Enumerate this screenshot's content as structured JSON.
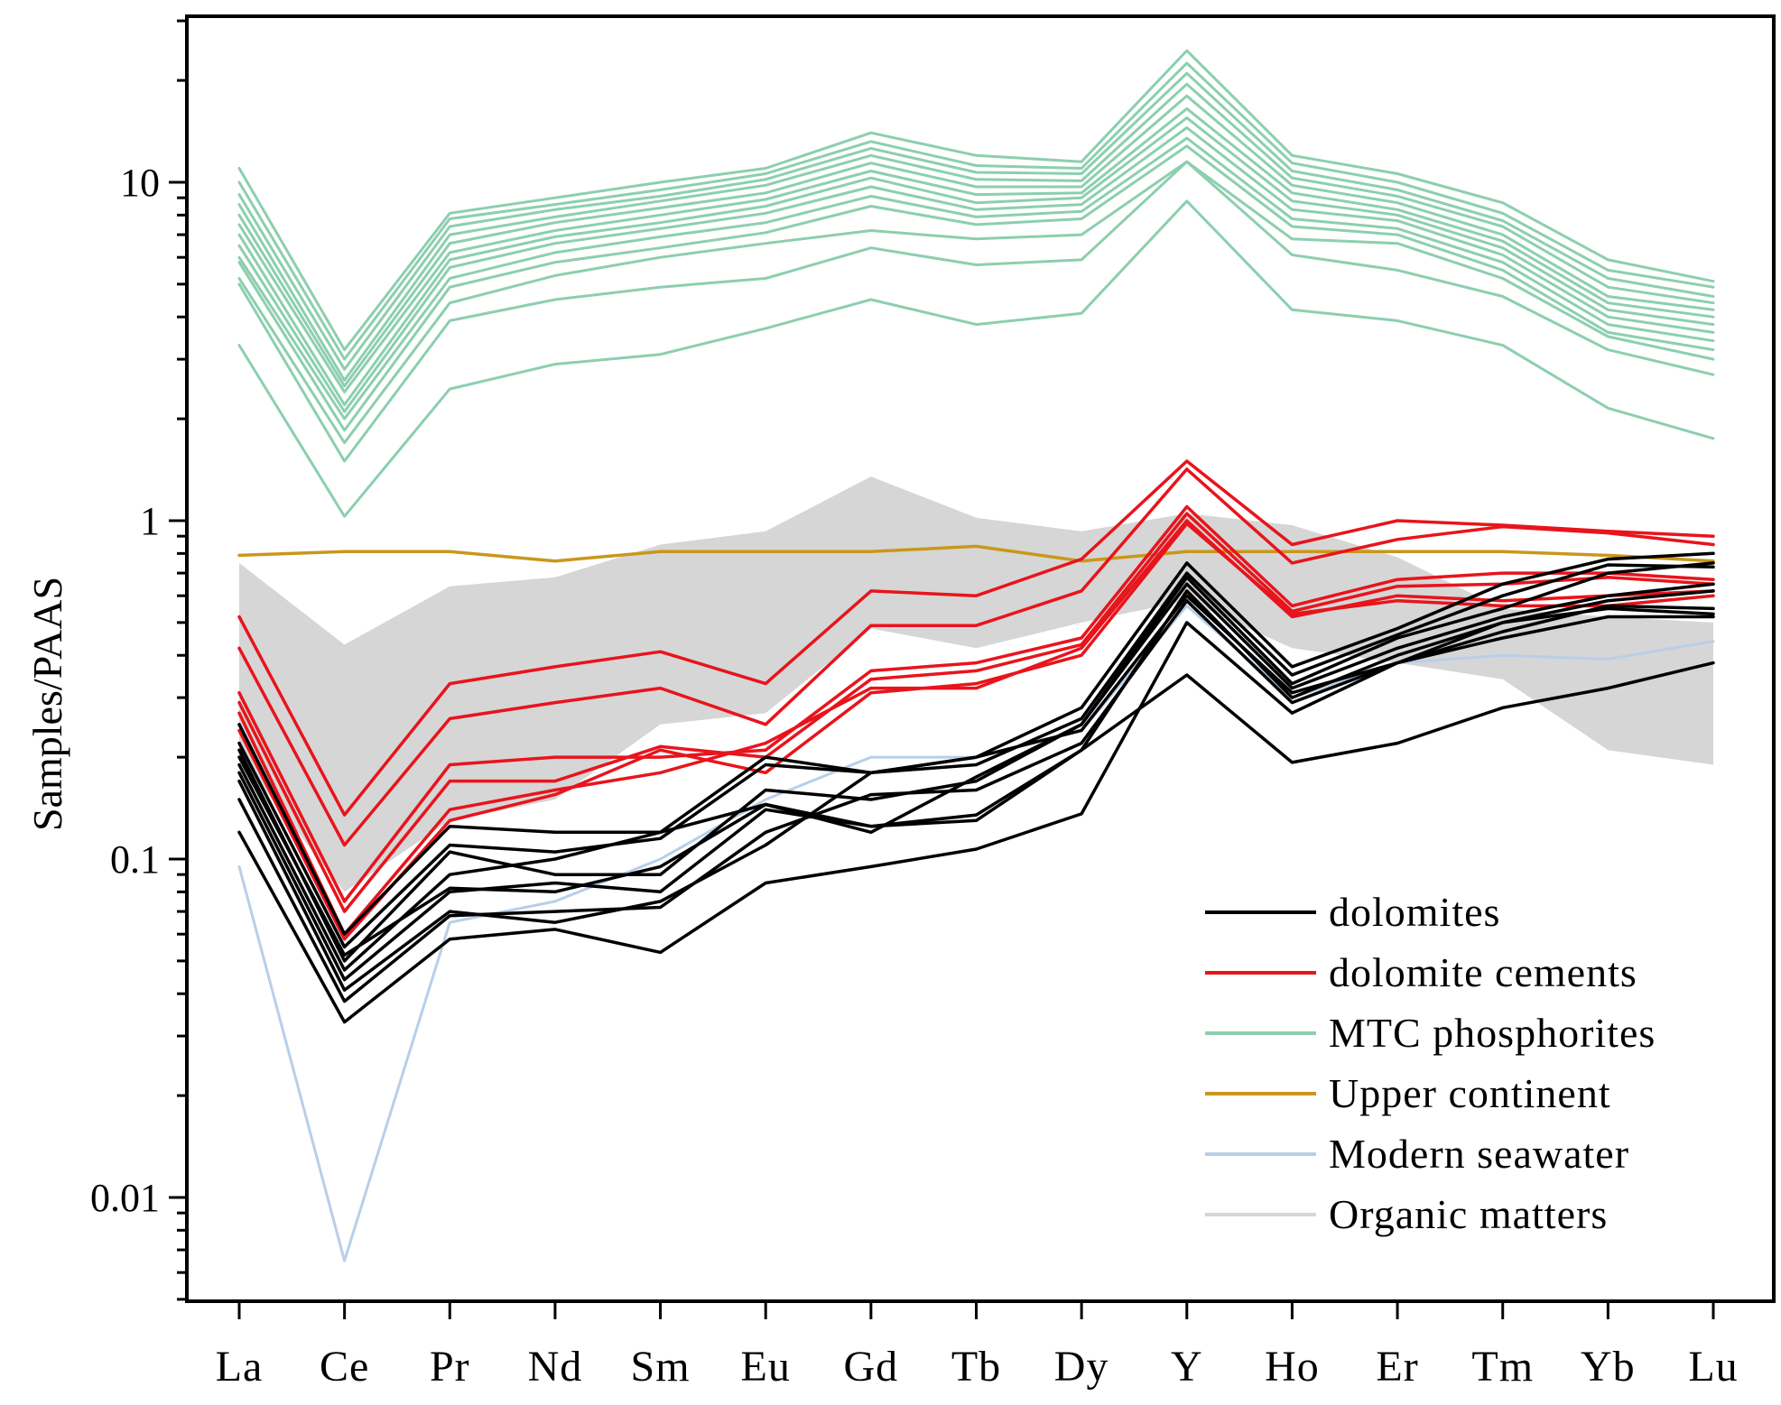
{
  "chart_data": {
    "type": "line",
    "title": "",
    "xlabel": "",
    "ylabel": "Samples/PAAS",
    "yscale": "log",
    "ylim": [
      0.005,
      30
    ],
    "y_ticks": [
      0.01,
      0.1,
      1,
      10
    ],
    "y_tick_labels": [
      "0.01",
      "0.1",
      "1",
      "10"
    ],
    "categories": [
      "La",
      "Ce",
      "Pr",
      "Nd",
      "Sm",
      "Eu",
      "Gd",
      "Tb",
      "Dy",
      "Y",
      "Ho",
      "Er",
      "Tm",
      "Yb",
      "Lu"
    ],
    "legend_position": "bottom-right",
    "legend": [
      {
        "label": "dolomites",
        "color": "#000000"
      },
      {
        "label": "dolomite cements",
        "color": "#e8141c"
      },
      {
        "label": "MTC phosphorites",
        "color": "#8ccfae"
      },
      {
        "label": "Upper continent",
        "color": "#c9971b"
      },
      {
        "label": "Modern seawater",
        "color": "#b8cfe8"
      },
      {
        "label": "Organic matters",
        "color": "#d6d6d6"
      }
    ],
    "organic_matters_band": {
      "color": "#d6d6d6",
      "upper": [
        0.75,
        0.43,
        0.64,
        0.68,
        0.85,
        0.93,
        1.35,
        1.02,
        0.93,
        1.05,
        0.97,
        0.78,
        0.55,
        0.52,
        0.5
      ],
      "lower": [
        0.2,
        0.08,
        0.13,
        0.15,
        0.25,
        0.27,
        0.48,
        0.42,
        0.5,
        0.58,
        0.42,
        0.38,
        0.34,
        0.21,
        0.19
      ]
    },
    "series": [
      {
        "name": "Modern seawater",
        "group": "Modern seawater",
        "color": "#b8cfe8",
        "width": 3,
        "values": [
          0.095,
          0.0065,
          0.065,
          0.075,
          0.1,
          0.15,
          0.2,
          0.2,
          0.24,
          0.56,
          0.3,
          0.38,
          0.4,
          0.39,
          0.44
        ]
      },
      {
        "name": "Upper continent",
        "group": "Upper continent",
        "color": "#c9971b",
        "width": 3.5,
        "values": [
          0.79,
          0.81,
          0.81,
          0.76,
          0.81,
          0.81,
          0.81,
          0.84,
          0.76,
          0.81,
          0.81,
          0.81,
          0.81,
          0.79,
          0.76
        ]
      },
      {
        "name": "MTC phosphorites 1",
        "group": "MTC phosphorites",
        "color": "#8ccfae",
        "width": 3,
        "values": [
          11.0,
          3.2,
          8.1,
          9.0,
          10.0,
          11.0,
          14.0,
          12.0,
          11.5,
          24.5,
          12.0,
          10.6,
          8.7,
          5.9,
          5.1
        ]
      },
      {
        "name": "MTC phosphorites 2",
        "group": "MTC phosphorites",
        "color": "#8ccfae",
        "width": 3,
        "values": [
          10.0,
          3.0,
          7.8,
          8.6,
          9.5,
          10.6,
          13.2,
          11.2,
          11.0,
          22.5,
          11.4,
          10.0,
          8.1,
          5.5,
          4.9
        ]
      },
      {
        "name": "MTC phosphorites 3",
        "group": "MTC phosphorites",
        "color": "#8ccfae",
        "width": 3,
        "values": [
          9.2,
          2.8,
          7.4,
          8.3,
          9.1,
          10.2,
          12.6,
          10.7,
          10.6,
          21.0,
          10.8,
          9.5,
          7.7,
          5.2,
          4.6
        ]
      },
      {
        "name": "MTC phosphorites 4",
        "group": "MTC phosphorites",
        "color": "#8ccfae",
        "width": 3,
        "values": [
          8.6,
          2.6,
          7.0,
          7.9,
          8.8,
          9.8,
          12.0,
          10.2,
          10.1,
          19.5,
          10.3,
          9.1,
          7.4,
          4.9,
          4.4
        ]
      },
      {
        "name": "MTC phosphorites 5",
        "group": "MTC phosphorites",
        "color": "#8ccfae",
        "width": 3,
        "values": [
          8.0,
          2.5,
          6.6,
          7.6,
          8.4,
          9.3,
          11.4,
          9.7,
          9.7,
          18.0,
          9.8,
          8.7,
          7.0,
          4.6,
          4.2
        ]
      },
      {
        "name": "MTC phosphorites 6",
        "group": "MTC phosphorites",
        "color": "#8ccfae",
        "width": 3,
        "values": [
          7.5,
          2.4,
          6.2,
          7.2,
          8.0,
          8.9,
          10.8,
          9.2,
          9.3,
          16.5,
          9.3,
          8.3,
          6.7,
          4.4,
          4.0
        ]
      },
      {
        "name": "MTC phosphorites 7",
        "group": "MTC phosphorites",
        "color": "#8ccfae",
        "width": 3,
        "values": [
          7.0,
          2.2,
          5.9,
          6.9,
          7.6,
          8.5,
          10.3,
          8.7,
          9.0,
          15.5,
          8.8,
          8.0,
          6.4,
          4.2,
          3.8
        ]
      },
      {
        "name": "MTC phosphorites 8",
        "group": "MTC phosphorites",
        "color": "#8ccfae",
        "width": 3,
        "values": [
          6.5,
          2.1,
          5.6,
          6.6,
          7.3,
          8.1,
          9.7,
          8.3,
          8.6,
          14.5,
          8.3,
          7.7,
          6.1,
          4.0,
          3.6
        ]
      },
      {
        "name": "MTC phosphorites 9",
        "group": "MTC phosphorites",
        "color": "#8ccfae",
        "width": 3,
        "values": [
          6.0,
          2.0,
          5.2,
          6.2,
          6.9,
          7.6,
          9.1,
          7.9,
          8.2,
          13.5,
          7.8,
          7.3,
          5.8,
          3.8,
          3.4
        ]
      },
      {
        "name": "MTC phosphorites 10",
        "group": "MTC phosphorites",
        "color": "#8ccfae",
        "width": 3,
        "values": [
          5.8,
          1.85,
          4.9,
          5.8,
          6.4,
          7.1,
          8.5,
          7.5,
          7.8,
          12.8,
          7.4,
          7.0,
          5.5,
          3.6,
          3.2
        ]
      },
      {
        "name": "MTC phosphorites 11",
        "group": "MTC phosphorites",
        "color": "#8ccfae",
        "width": 3,
        "values": [
          5.2,
          1.7,
          4.4,
          5.3,
          6.0,
          6.6,
          7.2,
          6.8,
          7.0,
          11.5,
          6.8,
          6.6,
          5.2,
          3.5,
          3.0
        ]
      },
      {
        "name": "MTC phosphorites 12",
        "group": "MTC phosphorites",
        "color": "#8ccfae",
        "width": 3,
        "values": [
          5.0,
          1.5,
          3.9,
          4.5,
          4.9,
          5.2,
          6.4,
          5.7,
          5.9,
          11.5,
          6.1,
          5.5,
          4.6,
          3.2,
          2.7
        ]
      },
      {
        "name": "MTC phosphorites 13",
        "group": "MTC phosphorites",
        "color": "#8ccfae",
        "width": 3,
        "values": [
          3.3,
          1.03,
          2.45,
          2.9,
          3.1,
          3.7,
          4.5,
          3.8,
          4.1,
          8.8,
          4.2,
          3.9,
          3.3,
          2.15,
          1.75
        ]
      },
      {
        "name": "dolomite cements 1",
        "group": "dolomite cements",
        "color": "#e8141c",
        "width": 3.5,
        "values": [
          0.52,
          0.135,
          0.33,
          0.37,
          0.41,
          0.33,
          0.62,
          0.6,
          0.77,
          1.5,
          0.85,
          1.0,
          0.97,
          0.93,
          0.9
        ]
      },
      {
        "name": "dolomite cements 2",
        "group": "dolomite cements",
        "color": "#e8141c",
        "width": 3.5,
        "values": [
          0.42,
          0.11,
          0.26,
          0.29,
          0.32,
          0.25,
          0.49,
          0.49,
          0.62,
          1.42,
          0.75,
          0.88,
          0.96,
          0.92,
          0.85
        ]
      },
      {
        "name": "dolomite cements 3",
        "group": "dolomite cements",
        "color": "#e8141c",
        "width": 3.5,
        "values": [
          0.31,
          0.075,
          0.19,
          0.2,
          0.2,
          0.21,
          0.36,
          0.38,
          0.45,
          1.1,
          0.56,
          0.67,
          0.7,
          0.7,
          0.67
        ]
      },
      {
        "name": "dolomite cements 4",
        "group": "dolomite cements",
        "color": "#e8141c",
        "width": 3.5,
        "values": [
          0.29,
          0.07,
          0.17,
          0.17,
          0.215,
          0.2,
          0.34,
          0.36,
          0.43,
          1.05,
          0.54,
          0.64,
          0.65,
          0.68,
          0.65
        ]
      },
      {
        "name": "dolomite cements 5",
        "group": "dolomite cements",
        "color": "#e8141c",
        "width": 3.5,
        "values": [
          0.27,
          0.06,
          0.14,
          0.16,
          0.18,
          0.22,
          0.32,
          0.32,
          0.42,
          1.0,
          0.52,
          0.6,
          0.58,
          0.6,
          0.62
        ]
      },
      {
        "name": "dolomite cements 6",
        "group": "dolomite cements",
        "color": "#e8141c",
        "width": 3.5,
        "values": [
          0.24,
          0.058,
          0.13,
          0.155,
          0.21,
          0.18,
          0.31,
          0.33,
          0.4,
          0.98,
          0.53,
          0.58,
          0.56,
          0.56,
          0.6
        ]
      },
      {
        "name": "dolomites 1",
        "group": "dolomites",
        "color": "#000000",
        "width": 3.5,
        "values": [
          0.25,
          0.06,
          0.125,
          0.12,
          0.12,
          0.2,
          0.18,
          0.2,
          0.28,
          0.75,
          0.37,
          0.48,
          0.65,
          0.77,
          0.8
        ]
      },
      {
        "name": "dolomites 2",
        "group": "dolomites",
        "color": "#000000",
        "width": 3.5,
        "values": [
          0.22,
          0.055,
          0.11,
          0.105,
          0.115,
          0.19,
          0.18,
          0.19,
          0.26,
          0.7,
          0.35,
          0.46,
          0.6,
          0.74,
          0.73
        ]
      },
      {
        "name": "dolomites 3",
        "group": "dolomites",
        "color": "#000000",
        "width": 3.5,
        "values": [
          0.21,
          0.05,
          0.105,
          0.09,
          0.09,
          0.16,
          0.15,
          0.17,
          0.25,
          0.68,
          0.33,
          0.45,
          0.55,
          0.7,
          0.75
        ]
      },
      {
        "name": "dolomites 4",
        "group": "dolomites",
        "color": "#000000",
        "width": 3.5,
        "values": [
          0.19,
          0.047,
          0.09,
          0.1,
          0.12,
          0.145,
          0.12,
          0.175,
          0.25,
          0.65,
          0.32,
          0.42,
          0.52,
          0.6,
          0.65
        ]
      },
      {
        "name": "dolomites 5",
        "group": "dolomites",
        "color": "#000000",
        "width": 3.5,
        "values": [
          0.18,
          0.044,
          0.08,
          0.085,
          0.08,
          0.14,
          0.125,
          0.13,
          0.21,
          0.62,
          0.3,
          0.4,
          0.5,
          0.58,
          0.62
        ]
      },
      {
        "name": "dolomites 6",
        "group": "dolomites",
        "color": "#000000",
        "width": 3.5,
        "values": [
          0.17,
          0.041,
          0.07,
          0.065,
          0.075,
          0.11,
          0.18,
          0.2,
          0.24,
          0.6,
          0.31,
          0.38,
          0.47,
          0.56,
          0.55
        ]
      },
      {
        "name": "dolomites 7",
        "group": "dolomites",
        "color": "#000000",
        "width": 3.5,
        "values": [
          0.15,
          0.038,
          0.068,
          0.07,
          0.072,
          0.12,
          0.155,
          0.16,
          0.22,
          0.58,
          0.29,
          0.38,
          0.45,
          0.52,
          0.52
        ]
      },
      {
        "name": "dolomites 8",
        "group": "dolomites",
        "color": "#000000",
        "width": 3.5,
        "values": [
          0.12,
          0.033,
          0.058,
          0.062,
          0.053,
          0.085,
          0.095,
          0.107,
          0.136,
          0.5,
          0.27,
          0.38,
          0.5,
          0.55,
          0.53
        ]
      },
      {
        "name": "dolomites 9",
        "group": "dolomites",
        "color": "#000000",
        "width": 3.5,
        "values": [
          0.2,
          0.052,
          0.082,
          0.08,
          0.095,
          0.145,
          0.125,
          0.135,
          0.21,
          0.35,
          0.193,
          0.22,
          0.28,
          0.32,
          0.38
        ]
      }
    ]
  }
}
